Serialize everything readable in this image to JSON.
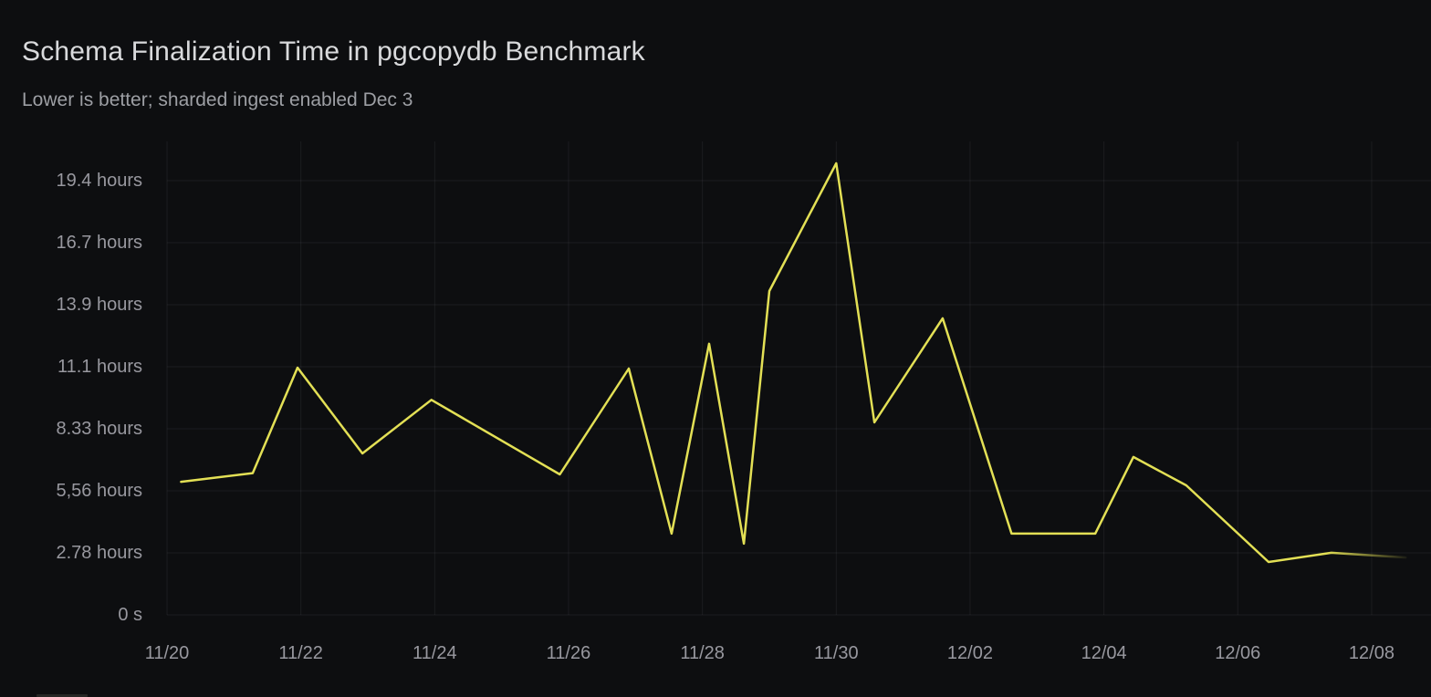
{
  "header": {
    "title": "Schema Finalization Time in pgcopydb Benchmark",
    "subtitle": "Lower is better; sharded ingest enabled Dec 3"
  },
  "colors": {
    "background": "#0d0e10",
    "line": "#e3e055",
    "grid": "rgba(204,204,220,0.08)",
    "axis_text": "#98989f",
    "title_text": "#d9dadc",
    "subtitle_text": "#9d9fa4"
  },
  "chart_data": {
    "type": "line",
    "title": "Schema Finalization Time in pgcopydb Benchmark",
    "subtitle": "Lower is better; sharded ingest enabled Dec 3",
    "xlabel": "",
    "ylabel": "",
    "y_unit": "duration (axis labeled in hours / seconds)",
    "ylim_seconds": [
      0,
      76300
    ],
    "xlim_days_from_11_20": [
      0,
      18.9
    ],
    "grid": true,
    "legend_position": "none",
    "y_ticks": [
      {
        "seconds": 0,
        "label": "0 s"
      },
      {
        "seconds": 10000,
        "label": "2.78 hours"
      },
      {
        "seconds": 20000,
        "label": "5,56 hours"
      },
      {
        "seconds": 30000,
        "label": "8.33 hours"
      },
      {
        "seconds": 40000,
        "label": "11.1 hours"
      },
      {
        "seconds": 50000,
        "label": "13.9 hours"
      },
      {
        "seconds": 60000,
        "label": "16.7 hours"
      },
      {
        "seconds": 70000,
        "label": "19.4 hours"
      }
    ],
    "x_ticks": [
      {
        "day": 0,
        "label": "11/20"
      },
      {
        "day": 2,
        "label": "11/22"
      },
      {
        "day": 4,
        "label": "11/24"
      },
      {
        "day": 6,
        "label": "11/26"
      },
      {
        "day": 8,
        "label": "11/28"
      },
      {
        "day": 10,
        "label": "11/30"
      },
      {
        "day": 12,
        "label": "12/02"
      },
      {
        "day": 14,
        "label": "12/04"
      },
      {
        "day": 16,
        "label": "12/06"
      },
      {
        "day": 18,
        "label": "12/08"
      }
    ],
    "series": [
      {
        "name": "schema-finalization-time",
        "color": "#e3e055",
        "fade_out_tail": true,
        "points": [
          {
            "date": "11/20",
            "day": 0.21,
            "hours": 5.96
          },
          {
            "date": "11/21",
            "day": 1.28,
            "hours": 6.35
          },
          {
            "date": "11/22",
            "day": 1.95,
            "hours": 11.07
          },
          {
            "date": "11/23",
            "day": 2.92,
            "hours": 7.23
          },
          {
            "date": "11/24",
            "day": 3.95,
            "hours": 9.63
          },
          {
            "date": "11/26",
            "day": 5.87,
            "hours": 6.29
          },
          {
            "date": "11/27",
            "day": 6.9,
            "hours": 11.03
          },
          {
            "date": "11/27",
            "day": 7.54,
            "hours": 3.64
          },
          {
            "date": "11/28",
            "day": 8.1,
            "hours": 12.14
          },
          {
            "date": "11/28",
            "day": 8.62,
            "hours": 3.19
          },
          {
            "date": "11/29",
            "day": 9.0,
            "hours": 14.5
          },
          {
            "date": "11/30",
            "day": 10.0,
            "hours": 20.22
          },
          {
            "date": "11/30",
            "day": 10.57,
            "hours": 8.62
          },
          {
            "date": "12/01",
            "day": 11.59,
            "hours": 13.28
          },
          {
            "date": "12/02",
            "day": 12.62,
            "hours": 3.64
          },
          {
            "date": "12/03",
            "day": 13.87,
            "hours": 3.64
          },
          {
            "date": "12/04",
            "day": 14.44,
            "hours": 7.07
          },
          {
            "date": "12/05",
            "day": 15.23,
            "hours": 5.8
          },
          {
            "date": "12/06",
            "day": 16.46,
            "hours": 2.37
          },
          {
            "date": "12/07",
            "day": 17.4,
            "hours": 2.78
          },
          {
            "date": "12/08",
            "day": 18.51,
            "hours": 2.57
          }
        ]
      }
    ]
  }
}
